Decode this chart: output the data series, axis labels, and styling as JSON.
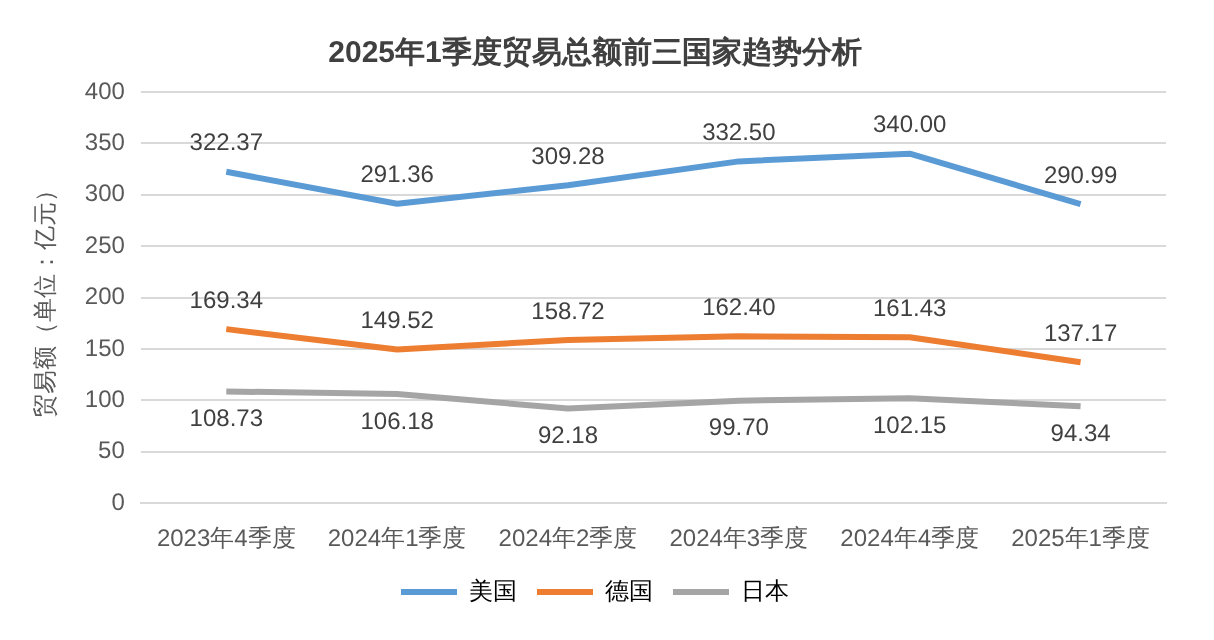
{
  "chart_data": {
    "type": "line",
    "title": "2025年1季度贸易总额前三国家趋势分析",
    "ylabel": "贸易额（单位：亿元）",
    "categories": [
      "2023年4季度",
      "2024年1季度",
      "2024年2季度",
      "2024年3季度",
      "2024年4季度",
      "2025年1季度"
    ],
    "series": [
      {
        "name": "美国",
        "color": "#5b9bd5",
        "values": [
          322.37,
          291.36,
          309.28,
          332.5,
          340,
          290.99
        ],
        "value_labels": [
          "322.37",
          "291.36",
          "309.28",
          "332.50",
          "340.00",
          "290.99"
        ]
      },
      {
        "name": "德国",
        "color": "#ed7d31",
        "values": [
          169.34,
          149.52,
          158.72,
          162.4,
          161.43,
          137.17
        ],
        "value_labels": [
          "169.34",
          "149.52",
          "158.72",
          "162.40",
          "161.43",
          "137.17"
        ]
      },
      {
        "name": "日本",
        "color": "#a5a5a5",
        "values": [
          108.73,
          106.18,
          92.18,
          99.7,
          102.15,
          94.34
        ],
        "value_labels": [
          "108.73",
          "106.18",
          "92.18",
          "99.70",
          "102.15",
          "94.34"
        ]
      }
    ],
    "ylim": [
      0,
      400
    ],
    "yticks": [
      0,
      50,
      100,
      150,
      200,
      250,
      300,
      350,
      400
    ],
    "grid": "y",
    "legend": "bottom",
    "marker": "none",
    "line_style": "solid"
  }
}
